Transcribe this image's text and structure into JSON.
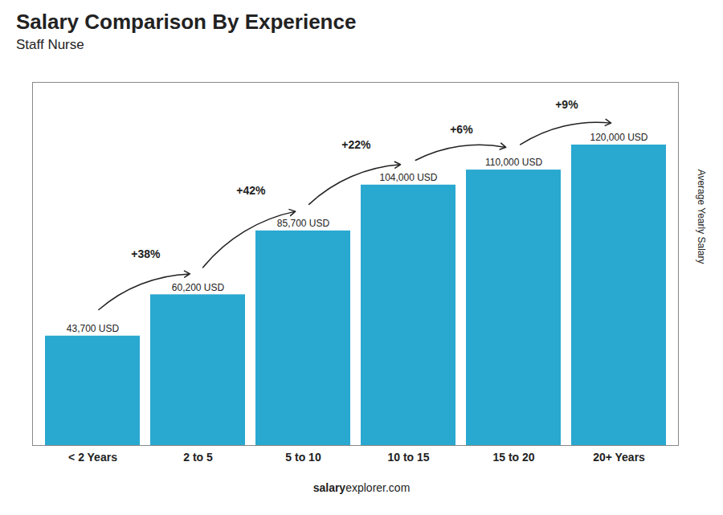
{
  "chart_data": {
    "type": "bar",
    "title": "Salary Comparison By Experience",
    "subtitle": "Staff Nurse",
    "y_label": "Average Yearly Salary",
    "categories": [
      "< 2 Years",
      "2 to 5",
      "5 to 10",
      "10 to 15",
      "15 to 20",
      "20+ Years"
    ],
    "values": [
      43700,
      60200,
      85700,
      104000,
      110000,
      120000
    ],
    "value_labels": [
      "43,700 USD",
      "60,200 USD",
      "85,700 USD",
      "104,000 USD",
      "110,000 USD",
      "120,000 USD"
    ],
    "data_labels": true,
    "annotations": [
      "+38%",
      "+42%",
      "+22%",
      "+6%",
      "+9%"
    ],
    "footer": [
      "salary",
      "explorer.com"
    ],
    "color": "#29a8d0",
    "ylim": [
      0,
      145000
    ],
    "tick_labels": "x",
    "grid": false
  }
}
